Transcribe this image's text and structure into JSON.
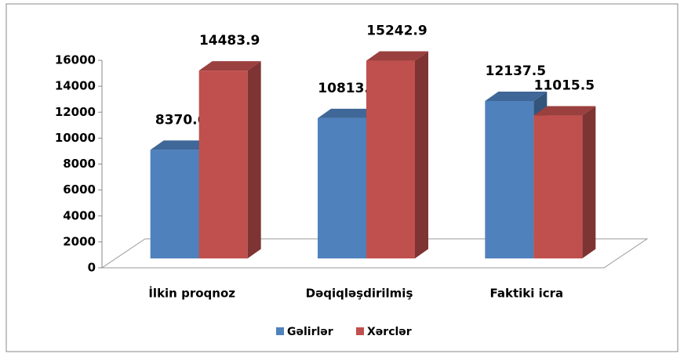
{
  "chart_data": {
    "type": "bar3d",
    "categories": [
      "İlkin proqnoz",
      "Dəqiqləşdirilmiş",
      "Faktiki icra"
    ],
    "series": [
      {
        "name": "Gəlirlər",
        "color": "#4f81bd",
        "values": [
          8370.6,
          10813.9,
          12137.5
        ]
      },
      {
        "name": "Xərclər",
        "color": "#c0504d",
        "values": [
          14483.9,
          15242.9,
          11015.5
        ]
      }
    ],
    "ylim": [
      0,
      16000
    ],
    "yticks": [
      0,
      2000,
      4000,
      6000,
      8000,
      10000,
      12000,
      14000,
      16000
    ],
    "legend": "bottom"
  }
}
